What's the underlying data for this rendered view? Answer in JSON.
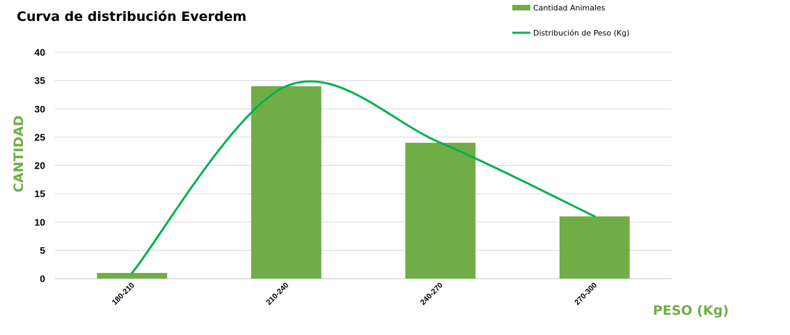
{
  "chart_data": {
    "type": "bar",
    "title": "Curva de distribución Everdem",
    "xlabel": "PESO (Kg)",
    "ylabel": "CANTIDAD",
    "categories": [
      "180-210",
      "210-240",
      "240-270",
      "270-300"
    ],
    "ylim": [
      0,
      40
    ],
    "yticks": [
      0,
      5,
      10,
      15,
      20,
      25,
      30,
      35,
      40
    ],
    "grid": true,
    "legend_position": "top-right",
    "series": [
      {
        "name": "Cantidad Animales",
        "type": "bar",
        "color": "#70AD47",
        "values": [
          1,
          34,
          24,
          11
        ]
      },
      {
        "name": "Distribución de Peso (Kg)",
        "type": "line",
        "smooth": true,
        "color": "#00B050",
        "values": [
          1,
          34,
          24,
          11
        ]
      }
    ],
    "label_color": "#70AD47"
  }
}
